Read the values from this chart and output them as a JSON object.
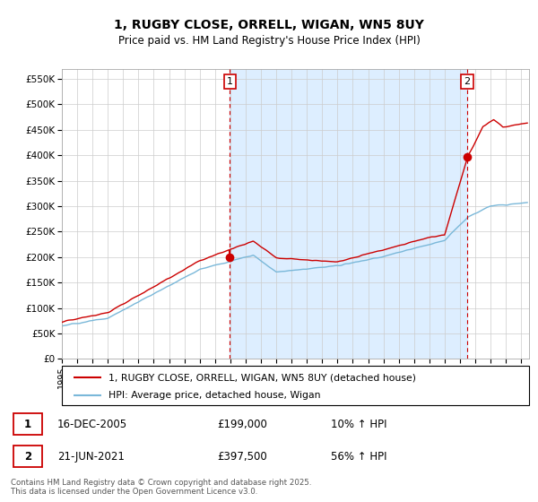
{
  "title": "1, RUGBY CLOSE, ORRELL, WIGAN, WN5 8UY",
  "subtitle": "Price paid vs. HM Land Registry's House Price Index (HPI)",
  "ylabel_ticks": [
    "£0",
    "£50K",
    "£100K",
    "£150K",
    "£200K",
    "£250K",
    "£300K",
    "£350K",
    "£400K",
    "£450K",
    "£500K",
    "£550K"
  ],
  "ytick_values": [
    0,
    50000,
    100000,
    150000,
    200000,
    250000,
    300000,
    350000,
    400000,
    450000,
    500000,
    550000
  ],
  "ylim": [
    0,
    570000
  ],
  "xlim_start": 1995.0,
  "xlim_end": 2025.5,
  "sale1_x": 2005.96,
  "sale1_y": 199000,
  "sale1_label": "1",
  "sale2_x": 2021.47,
  "sale2_y": 397500,
  "sale2_label": "2",
  "hpi_color": "#7ab8d9",
  "price_color": "#cc0000",
  "shade_color": "#ddeeff",
  "grid_color": "#cccccc",
  "background_color": "#ffffff",
  "legend_line1": "1, RUGBY CLOSE, ORRELL, WIGAN, WN5 8UY (detached house)",
  "legend_line2": "HPI: Average price, detached house, Wigan",
  "table_row1_num": "1",
  "table_row1_date": "16-DEC-2005",
  "table_row1_price": "£199,000",
  "table_row1_hpi": "10% ↑ HPI",
  "table_row2_num": "2",
  "table_row2_date": "21-JUN-2021",
  "table_row2_price": "£397,500",
  "table_row2_hpi": "56% ↑ HPI",
  "footer": "Contains HM Land Registry data © Crown copyright and database right 2025.\nThis data is licensed under the Open Government Licence v3.0."
}
